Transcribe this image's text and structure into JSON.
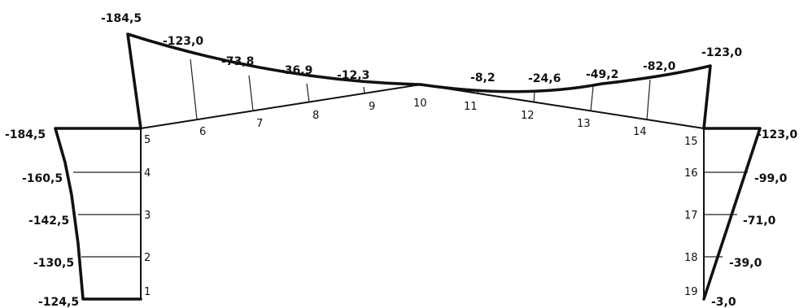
{
  "nodes": [
    "1",
    "2",
    "3",
    "4",
    "5",
    "6",
    "7",
    "8",
    "9",
    "10",
    "11",
    "12",
    "13",
    "14",
    "15",
    "16",
    "17",
    "18",
    "19"
  ],
  "values": {
    "left_column": [
      "-124,5",
      "-130,5",
      "-142,5",
      "-160,5",
      "-184,5"
    ],
    "left_rafter": [
      "-184,5",
      "-123,0",
      "-73,8",
      "-36,9",
      "-12,3"
    ],
    "right_rafter": [
      "-8,2",
      "-24,6",
      "-49,2",
      "-82,0",
      "-123,0"
    ],
    "right_column": [
      "-123,0",
      "-99,0",
      "-71,0",
      "-39,0",
      "-3,0"
    ]
  }
}
